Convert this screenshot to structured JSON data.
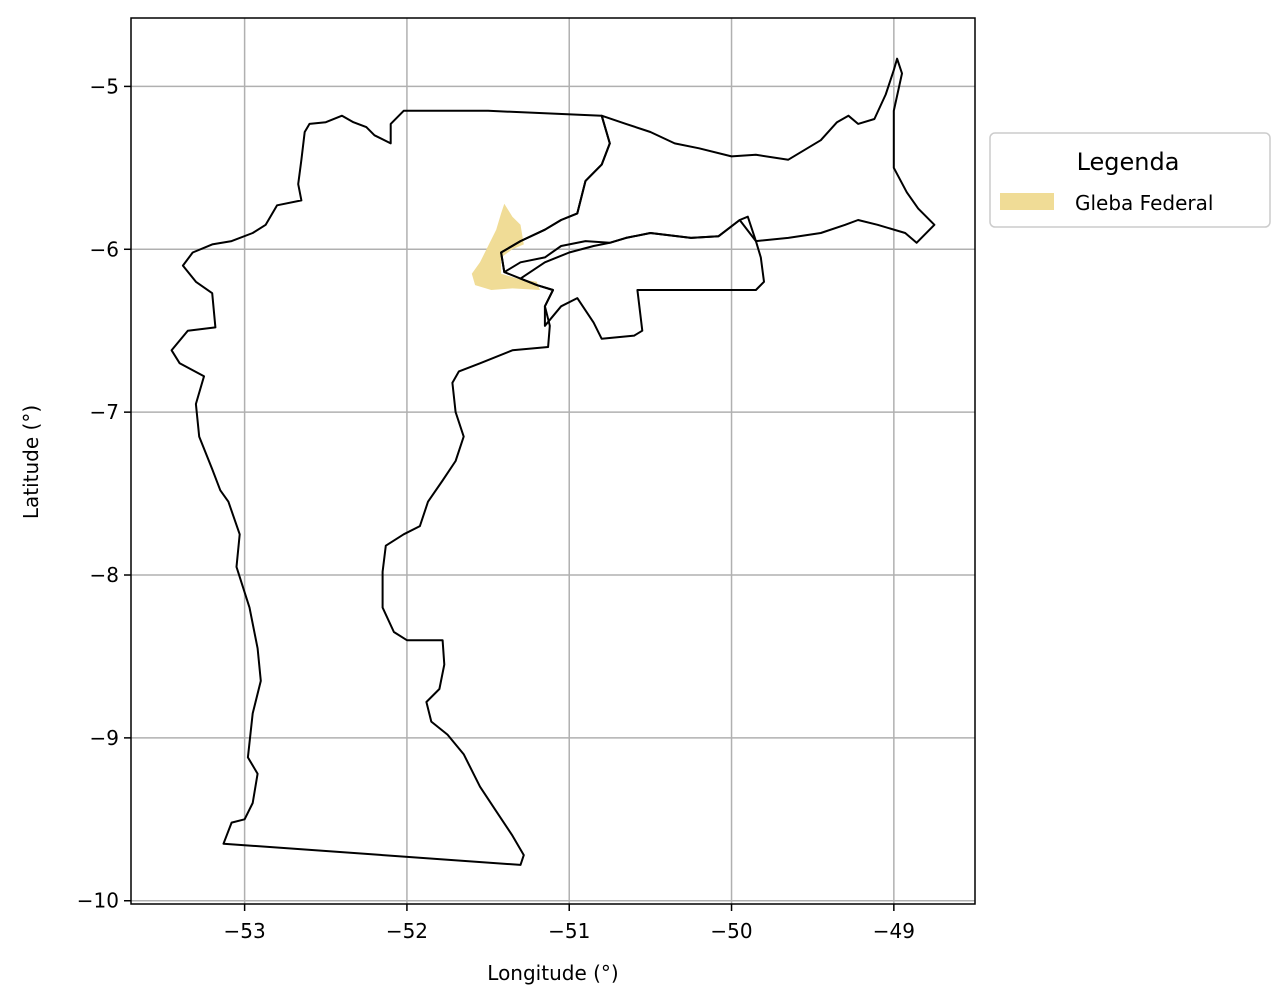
{
  "chart_data": {
    "type": "map",
    "xlabel": "Longitude (°)",
    "ylabel": "Latitude (°)",
    "xlim": [
      -53.7,
      -48.5
    ],
    "ylim": [
      -10.02,
      -4.58
    ],
    "xticks": [
      -53,
      -52,
      -51,
      -50,
      -49
    ],
    "yticks": [
      -5,
      -6,
      -7,
      -8,
      -9,
      -10
    ],
    "xtick_labels": [
      "−53",
      "−52",
      "−51",
      "−50",
      "−49"
    ],
    "ytick_labels": [
      "−5",
      "−6",
      "−7",
      "−8",
      "−9",
      "−10"
    ],
    "grid": true,
    "legend": {
      "title": "Legenda",
      "placement": "outside-right-top",
      "entries": [
        {
          "label": "Gleba Federal",
          "color": "#F0DC96"
        }
      ]
    },
    "colors": {
      "boundary": "#000000",
      "gleba_fill": "#F0DC96",
      "grid": "#b0b0b0"
    },
    "boundaries": [
      {
        "region": "west",
        "coords": [
          [
            -52.02,
            -5.15
          ],
          [
            -52.1,
            -5.23
          ],
          [
            -52.1,
            -5.28
          ],
          [
            -52.1,
            -5.35
          ],
          [
            -52.2,
            -5.3
          ],
          [
            -52.25,
            -5.25
          ],
          [
            -52.33,
            -5.22
          ],
          [
            -52.4,
            -5.18
          ],
          [
            -52.5,
            -5.22
          ],
          [
            -52.6,
            -5.23
          ],
          [
            -52.63,
            -5.28
          ],
          [
            -52.65,
            -5.45
          ],
          [
            -52.67,
            -5.6
          ],
          [
            -52.65,
            -5.7
          ],
          [
            -52.8,
            -5.73
          ],
          [
            -52.87,
            -5.85
          ],
          [
            -52.95,
            -5.9
          ],
          [
            -53.08,
            -5.95
          ],
          [
            -53.2,
            -5.97
          ],
          [
            -53.32,
            -6.02
          ],
          [
            -53.38,
            -6.1
          ],
          [
            -53.3,
            -6.2
          ],
          [
            -53.2,
            -6.27
          ],
          [
            -53.18,
            -6.48
          ],
          [
            -53.35,
            -6.5
          ],
          [
            -53.45,
            -6.62
          ],
          [
            -53.4,
            -6.7
          ],
          [
            -53.25,
            -6.78
          ],
          [
            -53.3,
            -6.95
          ],
          [
            -53.28,
            -7.15
          ],
          [
            -53.2,
            -7.35
          ],
          [
            -53.15,
            -7.48
          ],
          [
            -53.1,
            -7.55
          ],
          [
            -53.03,
            -7.75
          ],
          [
            -53.05,
            -7.95
          ],
          [
            -52.97,
            -8.2
          ],
          [
            -52.92,
            -8.45
          ],
          [
            -52.9,
            -8.65
          ],
          [
            -52.95,
            -8.85
          ],
          [
            -52.98,
            -9.12
          ],
          [
            -52.92,
            -9.22
          ],
          [
            -52.95,
            -9.4
          ],
          [
            -53.0,
            -9.5
          ],
          [
            -53.08,
            -9.52
          ],
          [
            -53.13,
            -9.65
          ],
          [
            -51.3,
            -9.78
          ],
          [
            -51.28,
            -9.72
          ],
          [
            -51.35,
            -9.6
          ],
          [
            -51.45,
            -9.45
          ],
          [
            -51.55,
            -9.3
          ],
          [
            -51.65,
            -9.1
          ],
          [
            -51.75,
            -8.98
          ],
          [
            -51.85,
            -8.9
          ],
          [
            -51.88,
            -8.78
          ],
          [
            -51.8,
            -8.7
          ],
          [
            -51.77,
            -8.55
          ],
          [
            -51.78,
            -8.4
          ],
          [
            -52.0,
            -8.4
          ],
          [
            -52.08,
            -8.35
          ],
          [
            -52.15,
            -8.2
          ],
          [
            -52.15,
            -7.98
          ],
          [
            -52.13,
            -7.82
          ],
          [
            -52.02,
            -7.75
          ],
          [
            -51.92,
            -7.7
          ],
          [
            -51.87,
            -7.55
          ],
          [
            -51.78,
            -7.42
          ],
          [
            -51.7,
            -7.3
          ],
          [
            -51.65,
            -7.15
          ],
          [
            -51.7,
            -7.0
          ],
          [
            -51.72,
            -6.82
          ],
          [
            -51.68,
            -6.75
          ],
          [
            -51.55,
            -6.7
          ],
          [
            -51.35,
            -6.62
          ],
          [
            -51.13,
            -6.6
          ],
          [
            -51.12,
            -6.47
          ],
          [
            -51.15,
            -6.35
          ],
          [
            -51.1,
            -6.25
          ],
          [
            -51.2,
            -6.22
          ],
          [
            -51.3,
            -6.18
          ],
          [
            -51.4,
            -6.14
          ],
          [
            -51.42,
            -6.02
          ],
          [
            -51.3,
            -5.95
          ],
          [
            -51.15,
            -5.88
          ],
          [
            -51.05,
            -5.82
          ],
          [
            -50.95,
            -5.78
          ],
          [
            -50.9,
            -5.58
          ],
          [
            -50.8,
            -5.48
          ],
          [
            -50.75,
            -5.35
          ],
          [
            -50.8,
            -5.18
          ],
          [
            -51.5,
            -5.15
          ],
          [
            -52.02,
            -5.15
          ]
        ]
      },
      {
        "region": "north-east",
        "coords": [
          [
            -50.8,
            -5.18
          ],
          [
            -50.65,
            -5.23
          ],
          [
            -50.5,
            -5.28
          ],
          [
            -50.35,
            -5.35
          ],
          [
            -50.2,
            -5.38
          ],
          [
            -50.0,
            -5.43
          ],
          [
            -49.85,
            -5.42
          ],
          [
            -49.65,
            -5.45
          ],
          [
            -49.45,
            -5.33
          ],
          [
            -49.35,
            -5.22
          ],
          [
            -49.28,
            -5.18
          ],
          [
            -49.22,
            -5.23
          ],
          [
            -49.12,
            -5.2
          ],
          [
            -49.05,
            -5.05
          ],
          [
            -49.0,
            -4.9
          ],
          [
            -48.98,
            -4.83
          ],
          [
            -48.95,
            -4.92
          ],
          [
            -49.0,
            -5.15
          ],
          [
            -49.0,
            -5.5
          ],
          [
            -48.92,
            -5.65
          ],
          [
            -48.85,
            -5.75
          ],
          [
            -48.75,
            -5.85
          ],
          [
            -48.86,
            -5.96
          ],
          [
            -48.93,
            -5.9
          ],
          [
            -49.1,
            -5.85
          ],
          [
            -49.22,
            -5.82
          ],
          [
            -49.3,
            -5.85
          ],
          [
            -49.45,
            -5.9
          ],
          [
            -49.65,
            -5.93
          ],
          [
            -49.85,
            -5.95
          ],
          [
            -49.9,
            -5.8
          ],
          [
            -49.95,
            -5.82
          ],
          [
            -50.08,
            -5.92
          ],
          [
            -50.25,
            -5.93
          ],
          [
            -50.5,
            -5.9
          ],
          [
            -50.65,
            -5.93
          ],
          [
            -50.75,
            -5.96
          ],
          [
            -50.9,
            -5.95
          ],
          [
            -51.05,
            -5.98
          ],
          [
            -51.15,
            -6.05
          ],
          [
            -51.3,
            -6.08
          ],
          [
            -51.4,
            -6.14
          ],
          [
            -51.42,
            -6.02
          ],
          [
            -51.3,
            -5.95
          ],
          [
            -51.15,
            -5.88
          ],
          [
            -51.05,
            -5.82
          ],
          [
            -50.95,
            -5.78
          ],
          [
            -50.9,
            -5.58
          ],
          [
            -50.8,
            -5.48
          ],
          [
            -50.75,
            -5.35
          ],
          [
            -50.8,
            -5.18
          ]
        ]
      },
      {
        "region": "south-east",
        "coords": [
          [
            -51.3,
            -6.18
          ],
          [
            -51.15,
            -6.08
          ],
          [
            -51.0,
            -6.02
          ],
          [
            -50.85,
            -5.98
          ],
          [
            -50.75,
            -5.96
          ],
          [
            -50.65,
            -5.93
          ],
          [
            -50.5,
            -5.9
          ],
          [
            -50.25,
            -5.93
          ],
          [
            -50.08,
            -5.92
          ],
          [
            -49.95,
            -5.82
          ],
          [
            -49.85,
            -5.95
          ],
          [
            -49.82,
            -6.05
          ],
          [
            -49.8,
            -6.2
          ],
          [
            -49.85,
            -6.25
          ],
          [
            -50.58,
            -6.25
          ],
          [
            -50.55,
            -6.5
          ],
          [
            -50.6,
            -6.53
          ],
          [
            -50.8,
            -6.55
          ],
          [
            -50.85,
            -6.45
          ],
          [
            -50.95,
            -6.3
          ],
          [
            -51.05,
            -6.35
          ],
          [
            -51.15,
            -6.47
          ],
          [
            -51.15,
            -6.35
          ],
          [
            -51.1,
            -6.25
          ],
          [
            -51.2,
            -6.22
          ],
          [
            -51.3,
            -6.18
          ]
        ]
      }
    ],
    "gleba_federal_polygons": [
      [
        [
          -51.4,
          -5.72
        ],
        [
          -51.35,
          -5.8
        ],
        [
          -51.3,
          -5.85
        ],
        [
          -51.28,
          -5.97
        ],
        [
          -51.35,
          -6.0
        ],
        [
          -51.42,
          -6.05
        ],
        [
          -51.42,
          -6.15
        ],
        [
          -51.32,
          -6.18
        ],
        [
          -51.2,
          -6.2
        ],
        [
          -51.18,
          -6.25
        ],
        [
          -51.35,
          -6.24
        ],
        [
          -51.48,
          -6.25
        ],
        [
          -51.58,
          -6.22
        ],
        [
          -51.6,
          -6.15
        ],
        [
          -51.55,
          -6.08
        ],
        [
          -51.5,
          -5.98
        ],
        [
          -51.45,
          -5.88
        ],
        [
          -51.42,
          -5.78
        ],
        [
          -51.4,
          -5.72
        ]
      ]
    ]
  }
}
